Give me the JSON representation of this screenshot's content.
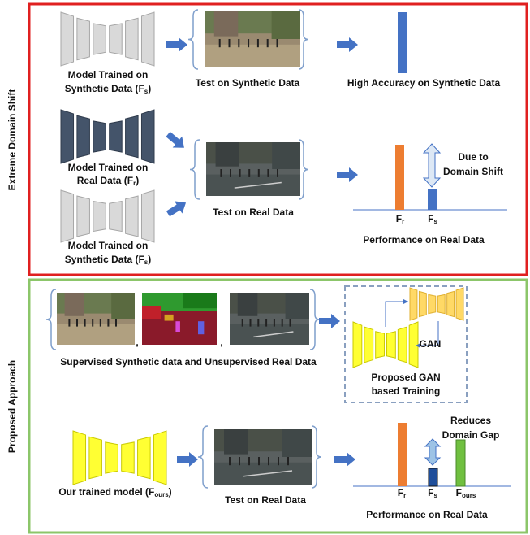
{
  "top": {
    "label": "Extreme Domain Shift",
    "model_synthetic": {
      "line1": "Model Trained on",
      "line2": "Synthetic Data (F",
      "sub": "s",
      "close": ")"
    },
    "test_synthetic": "Test on Synthetic Data",
    "high_accuracy": "High Accuracy on Synthetic Data",
    "model_real": {
      "line1": "Model Trained on",
      "line2": "Real Data (F",
      "sub": "r",
      "close": ")"
    },
    "model_synthetic_2": {
      "line1": "Model Trained on",
      "line2": "Synthetic Data (F",
      "sub": "s",
      "close": ")"
    },
    "test_real": "Test on Real Data",
    "chart": {
      "labels": [
        {
          "base": "F",
          "sub": "r"
        },
        {
          "base": "F",
          "sub": "s"
        }
      ],
      "note": [
        "Due to",
        "Domain Shift"
      ],
      "caption": "Performance on Real Data"
    }
  },
  "bottom": {
    "label": "Proposed Approach",
    "separators": [
      ",",
      ","
    ],
    "inputs_caption": "Supervised Synthetic data and Unsupervised Real Data",
    "gan": "GAN",
    "training": [
      "Proposed GAN",
      "based Training"
    ],
    "model": {
      "line1": "Our trained model (F",
      "sub": "ours",
      "close": ")"
    },
    "test_real": "Test on Real Data",
    "chart": {
      "labels": [
        {
          "base": "F",
          "sub": "r"
        },
        {
          "base": "F",
          "sub": "s"
        },
        {
          "base": "F",
          "sub": "ours"
        }
      ],
      "note": [
        "Reduces",
        "Domain Gap"
      ],
      "caption": "Performance on Real Data"
    }
  }
}
